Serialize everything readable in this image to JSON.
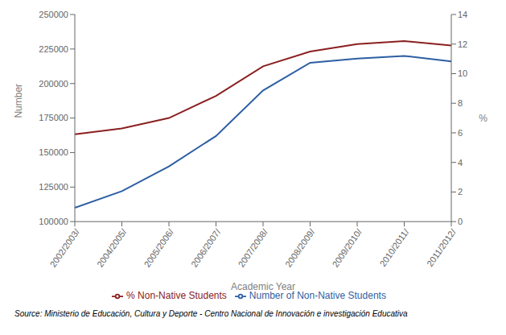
{
  "chart_data": {
    "type": "line",
    "xlabel": "Academic Year",
    "ylabel": "Number",
    "y2label": "%",
    "categories": [
      "2002/2003/",
      "2004/2005/",
      "2005/2006/",
      "2006/2007/",
      "2007/2008/",
      "2008/2009/",
      "2009/2010/",
      "2010/2011/",
      "2011/2012/"
    ],
    "series": [
      {
        "name": "Number of Non-Native Students",
        "color": "#2d5fa3",
        "axis": "y",
        "values": [
          110000,
          122000,
          140000,
          162000,
          195000,
          215000,
          218000,
          220000,
          216000
        ]
      },
      {
        "name": "% Non-Native Students",
        "color": "#8b2020",
        "axis": "y2",
        "values": [
          5.9,
          6.3,
          7.0,
          8.5,
          10.5,
          11.5,
          12.0,
          12.2,
          11.9
        ]
      }
    ],
    "ylim": [
      100000,
      250000
    ],
    "yticks": [
      100000,
      125000,
      150000,
      175000,
      200000,
      225000,
      250000
    ],
    "y2lim": [
      0,
      14
    ],
    "y2ticks": [
      0,
      2,
      4,
      6,
      8,
      10,
      12,
      14
    ],
    "grid": false,
    "legend": "bottom",
    "annotations": [
      "Source: Ministerio de Educación, Cultura y Deporte - Centro Nacional de Innovación e  investigación Educativa"
    ]
  }
}
